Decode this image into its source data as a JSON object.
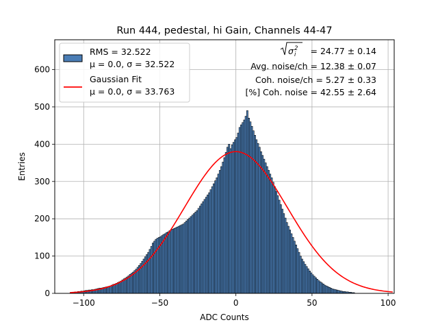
{
  "chart_data": {
    "type": "bar",
    "title": "Run 444, pedestal, hi Gain, Channels 44-47",
    "xlabel": "ADC Counts",
    "ylabel": "Entries",
    "xlim": [
      -119,
      104
    ],
    "ylim": [
      0,
      680
    ],
    "xticks": [
      -100,
      -50,
      0,
      50,
      100
    ],
    "yticks": [
      0,
      100,
      200,
      300,
      400,
      500,
      600
    ],
    "grid": true,
    "legend_position": "top-left",
    "histogram": {
      "name": "RMS = 32.522",
      "stats": "μ = 0.0, σ = 32.522",
      "color": "#4a7db5",
      "bin_start": -109,
      "bin_width": 1,
      "counts": [
        2,
        3,
        3,
        4,
        4,
        5,
        5,
        6,
        6,
        7,
        8,
        8,
        9,
        9,
        10,
        10,
        11,
        12,
        13,
        14,
        14,
        15,
        16,
        17,
        18,
        19,
        20,
        22,
        24,
        25,
        27,
        29,
        31,
        33,
        36,
        39,
        41,
        44,
        47,
        51,
        54,
        57,
        61,
        65,
        70,
        75,
        80,
        86,
        92,
        98,
        104,
        110,
        118,
        126,
        135,
        140,
        145,
        148,
        150,
        152,
        155,
        158,
        160,
        163,
        165,
        168,
        170,
        172,
        174,
        176,
        178,
        180,
        182,
        184,
        186,
        190,
        194,
        198,
        202,
        206,
        210,
        214,
        218,
        222,
        228,
        234,
        240,
        246,
        252,
        258,
        264,
        270,
        278,
        286,
        294,
        302,
        310,
        320,
        330,
        340,
        352,
        364,
        378,
        392,
        400,
        388,
        398,
        405,
        412,
        418,
        430,
        445,
        452,
        458,
        465,
        475,
        490,
        470,
        460,
        448,
        436,
        424,
        412,
        402,
        392,
        380,
        370,
        360,
        350,
        340,
        330,
        320,
        310,
        298,
        286,
        274,
        262,
        250,
        238,
        226,
        214,
        202,
        190,
        180,
        170,
        160,
        150,
        140,
        130,
        120,
        110,
        100,
        92,
        85,
        78,
        72,
        66,
        60,
        55,
        50,
        46,
        42,
        38,
        34,
        31,
        28,
        25,
        22,
        20,
        18,
        16,
        14,
        12,
        11,
        10,
        9,
        8,
        7,
        6,
        5,
        5,
        4,
        4,
        3,
        3,
        2,
        2
      ]
    },
    "fit": {
      "name": "Gaussian Fit",
      "stats": "μ = 0.0, σ = 33.763",
      "color": "#ff0000",
      "mu": 0.0,
      "sigma": 33.763,
      "amplitude": 380,
      "x_range": [
        -109,
        103
      ]
    },
    "annotations": [
      {
        "id": "sigma",
        "text": " = 24.77 ± 0.14"
      },
      {
        "id": "avg_noise",
        "text": "Avg. noise/ch = 12.38 ± 0.07"
      },
      {
        "id": "coh_noise",
        "text": "Coh. noise/ch = 5.27 ± 0.33"
      },
      {
        "id": "coh_pct",
        "text": "[%] Coh. noise = 42.55 ± 2.64"
      }
    ]
  }
}
